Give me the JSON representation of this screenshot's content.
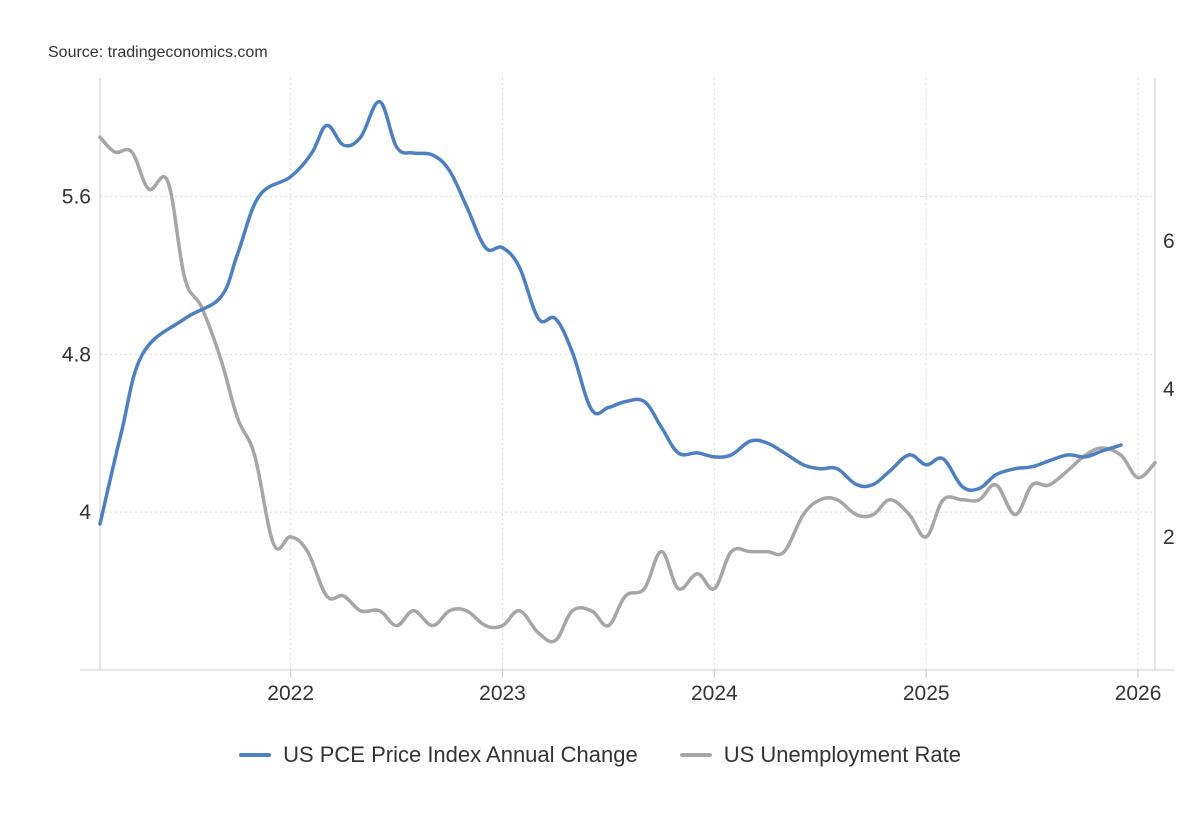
{
  "source": "Source: tradingeconomics.com",
  "chart_data": {
    "type": "line",
    "title": "",
    "x_range": [
      2021.1,
      2026.08
    ],
    "x_ticks": [
      {
        "value": 2022,
        "label": "2022"
      },
      {
        "value": 2023,
        "label": "2023"
      },
      {
        "value": 2024,
        "label": "2024"
      },
      {
        "value": 2025,
        "label": "2025"
      },
      {
        "value": 2026,
        "label": "2026"
      }
    ],
    "y_left": {
      "range": [
        3.2,
        6.2
      ],
      "ticks": [
        {
          "value": 4.0,
          "label": "4"
        },
        {
          "value": 4.8,
          "label": "4.8"
        },
        {
          "value": 5.6,
          "label": "5.6"
        }
      ]
    },
    "y_right": {
      "range": [
        0.2,
        8.2
      ],
      "ticks": [
        {
          "value": 2,
          "label": "2"
        },
        {
          "value": 4,
          "label": "4"
        },
        {
          "value": 6,
          "label": "6"
        }
      ]
    },
    "series": [
      {
        "name": "US PCE Price Index Annual Change",
        "color": "#4e7fbf",
        "axis": "left",
        "points": [
          [
            2021.1,
            3.94
          ],
          [
            2021.2,
            4.4
          ],
          [
            2021.3,
            4.8
          ],
          [
            2021.5,
            4.98
          ],
          [
            2021.67,
            5.09
          ],
          [
            2021.75,
            5.31
          ],
          [
            2021.85,
            5.6
          ],
          [
            2022.0,
            5.7
          ],
          [
            2022.1,
            5.82
          ],
          [
            2022.17,
            5.96
          ],
          [
            2022.25,
            5.86
          ],
          [
            2022.33,
            5.9
          ],
          [
            2022.42,
            6.08
          ],
          [
            2022.5,
            5.85
          ],
          [
            2022.58,
            5.82
          ],
          [
            2022.67,
            5.81
          ],
          [
            2022.75,
            5.73
          ],
          [
            2022.83,
            5.55
          ],
          [
            2022.92,
            5.34
          ],
          [
            2023.0,
            5.34
          ],
          [
            2023.08,
            5.24
          ],
          [
            2023.17,
            4.98
          ],
          [
            2023.25,
            4.98
          ],
          [
            2023.33,
            4.81
          ],
          [
            2023.42,
            4.52
          ],
          [
            2023.5,
            4.53
          ],
          [
            2023.58,
            4.56
          ],
          [
            2023.67,
            4.56
          ],
          [
            2023.75,
            4.43
          ],
          [
            2023.83,
            4.3
          ],
          [
            2023.92,
            4.3
          ],
          [
            2024.0,
            4.28
          ],
          [
            2024.08,
            4.29
          ],
          [
            2024.17,
            4.36
          ],
          [
            2024.25,
            4.35
          ],
          [
            2024.33,
            4.3
          ],
          [
            2024.42,
            4.24
          ],
          [
            2024.5,
            4.22
          ],
          [
            2024.58,
            4.22
          ],
          [
            2024.67,
            4.14
          ],
          [
            2024.75,
            4.14
          ],
          [
            2024.83,
            4.21
          ],
          [
            2024.92,
            4.29
          ],
          [
            2025.0,
            4.24
          ],
          [
            2025.08,
            4.27
          ],
          [
            2025.17,
            4.13
          ],
          [
            2025.25,
            4.12
          ],
          [
            2025.33,
            4.19
          ],
          [
            2025.42,
            4.22
          ],
          [
            2025.5,
            4.23
          ],
          [
            2025.58,
            4.26
          ],
          [
            2025.67,
            4.29
          ],
          [
            2025.75,
            4.28
          ],
          [
            2025.83,
            4.31
          ],
          [
            2025.92,
            4.34
          ]
        ]
      },
      {
        "name": "US Unemployment Rate",
        "color": "#a6a6a6",
        "axis": "right",
        "points": [
          [
            2021.1,
            7.4
          ],
          [
            2021.17,
            7.2
          ],
          [
            2021.25,
            7.2
          ],
          [
            2021.33,
            6.7
          ],
          [
            2021.42,
            6.8
          ],
          [
            2021.5,
            5.5
          ],
          [
            2021.58,
            5.1
          ],
          [
            2021.67,
            4.4
          ],
          [
            2021.75,
            3.6
          ],
          [
            2021.83,
            3.1
          ],
          [
            2021.92,
            1.9
          ],
          [
            2022.0,
            2.0
          ],
          [
            2022.08,
            1.8
          ],
          [
            2022.17,
            1.2
          ],
          [
            2022.25,
            1.2
          ],
          [
            2022.33,
            1.0
          ],
          [
            2022.42,
            1.0
          ],
          [
            2022.5,
            0.8
          ],
          [
            2022.58,
            1.0
          ],
          [
            2022.67,
            0.8
          ],
          [
            2022.75,
            1.0
          ],
          [
            2022.83,
            1.0
          ],
          [
            2022.92,
            0.8
          ],
          [
            2023.0,
            0.8
          ],
          [
            2023.08,
            1.0
          ],
          [
            2023.17,
            0.7
          ],
          [
            2023.25,
            0.6
          ],
          [
            2023.33,
            1.0
          ],
          [
            2023.42,
            1.0
          ],
          [
            2023.5,
            0.8
          ],
          [
            2023.58,
            1.2
          ],
          [
            2023.67,
            1.3
          ],
          [
            2023.75,
            1.8
          ],
          [
            2023.83,
            1.3
          ],
          [
            2023.92,
            1.5
          ],
          [
            2024.0,
            1.3
          ],
          [
            2024.08,
            1.8
          ],
          [
            2024.17,
            1.8
          ],
          [
            2024.25,
            1.8
          ],
          [
            2024.33,
            1.8
          ],
          [
            2024.42,
            2.3
          ],
          [
            2024.5,
            2.5
          ],
          [
            2024.58,
            2.5
          ],
          [
            2024.67,
            2.3
          ],
          [
            2024.75,
            2.3
          ],
          [
            2024.83,
            2.5
          ],
          [
            2024.92,
            2.3
          ],
          [
            2025.0,
            2.0
          ],
          [
            2025.08,
            2.5
          ],
          [
            2025.17,
            2.5
          ],
          [
            2025.25,
            2.5
          ],
          [
            2025.33,
            2.7
          ],
          [
            2025.42,
            2.3
          ],
          [
            2025.5,
            2.7
          ],
          [
            2025.58,
            2.7
          ],
          [
            2025.67,
            2.9
          ],
          [
            2025.75,
            3.1
          ],
          [
            2025.83,
            3.2
          ],
          [
            2025.92,
            3.1
          ],
          [
            2026.0,
            2.8
          ],
          [
            2026.08,
            3.0
          ]
        ]
      }
    ],
    "grid": true,
    "legend_position": "bottom-center"
  }
}
